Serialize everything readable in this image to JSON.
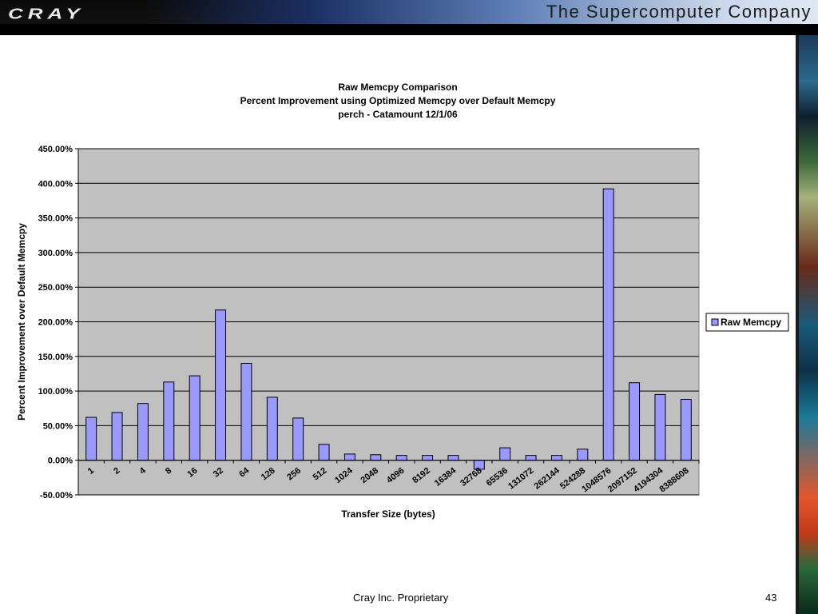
{
  "header": {
    "logo": "CRAY",
    "tagline": "The Supercomputer Company"
  },
  "footer": {
    "text": "Cray Inc. Proprietary",
    "page": "43"
  },
  "colors": {
    "bar_fill": "#9999ff",
    "plot_bg": "#c0c0c0",
    "banner": "#000000"
  },
  "chart_data": {
    "type": "bar",
    "title_lines": [
      "Raw Memcpy Comparison",
      "Percent Improvement using Optimized Memcpy over Default Memcpy",
      "perch - Catamount  12/1/06"
    ],
    "xlabel": "Transfer Size (bytes)",
    "ylabel": "Percent Improvement over Default Memcpy",
    "categories": [
      "1",
      "2",
      "4",
      "8",
      "16",
      "32",
      "64",
      "128",
      "256",
      "512",
      "1024",
      "2048",
      "4096",
      "8192",
      "16384",
      "32768",
      "65536",
      "131072",
      "262144",
      "524288",
      "1048576",
      "2097152",
      "4194304",
      "8388608"
    ],
    "series": [
      {
        "name": "Raw Memcpy",
        "values": [
          62,
          69,
          82,
          113,
          122,
          217,
          140,
          91,
          61,
          23,
          9,
          8,
          7,
          7,
          7,
          -13,
          18,
          7,
          7,
          16,
          392,
          112,
          95,
          88
        ]
      }
    ],
    "ylim": [
      -50,
      450
    ],
    "yticks": [
      -50,
      0,
      50,
      100,
      150,
      200,
      250,
      300,
      350,
      400,
      450
    ],
    "ytick_labels": [
      "-50.00%",
      "0.00%",
      "50.00%",
      "100.00%",
      "150.00%",
      "200.00%",
      "250.00%",
      "300.00%",
      "350.00%",
      "400.00%",
      "450.00%"
    ],
    "legend_position": "right",
    "grid": true
  }
}
